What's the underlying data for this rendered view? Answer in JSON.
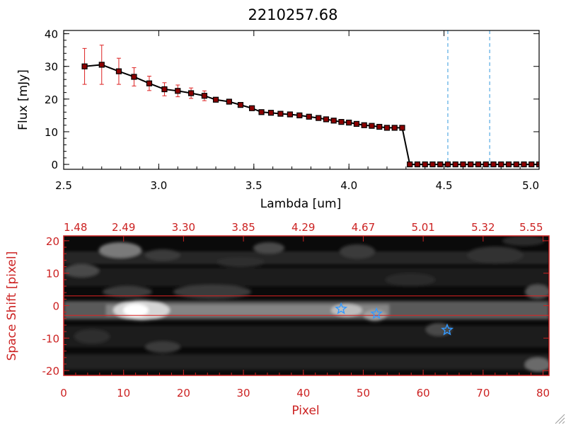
{
  "chart_data": [
    {
      "type": "line",
      "title": "2210257.68",
      "xlabel": "Lambda [um]",
      "ylabel": "Flux [mJy]",
      "xlim": [
        2.5,
        5.0
      ],
      "ylim": [
        -1.5,
        41
      ],
      "xticks": [
        "2.5",
        "3.0",
        "3.5",
        "4.0",
        "4.5",
        "5.0"
      ],
      "yticks": [
        "0",
        "10",
        "20",
        "30",
        "40"
      ],
      "vlines": [
        4.52,
        4.74
      ],
      "colors": {
        "line": "#000000",
        "marker": "#8b0000",
        "errorbar": "#dd2222",
        "vline": "#3399dd"
      },
      "series": [
        {
          "x": [
            2.61,
            2.7,
            2.79,
            2.87,
            2.95,
            3.03,
            3.1,
            3.17,
            3.24,
            3.3,
            3.37,
            3.43,
            3.49,
            3.54,
            3.59,
            3.64,
            3.69,
            3.74,
            3.79,
            3.84,
            3.88,
            3.92,
            3.96,
            4.0,
            4.04,
            4.08,
            4.12,
            4.16,
            4.2,
            4.24,
            4.28,
            4.32,
            4.36,
            4.4,
            4.44,
            4.48,
            4.52,
            4.56,
            4.6,
            4.64,
            4.68,
            4.72,
            4.76,
            4.8,
            4.84,
            4.88,
            4.92,
            4.96,
            5.0
          ],
          "y": [
            30.0,
            30.5,
            28.5,
            26.8,
            24.8,
            23.0,
            22.5,
            21.8,
            21.0,
            19.8,
            19.2,
            18.2,
            17.2,
            16.0,
            15.8,
            15.5,
            15.3,
            15.0,
            14.6,
            14.2,
            13.8,
            13.4,
            13.0,
            12.8,
            12.4,
            12.0,
            11.8,
            11.5,
            11.2,
            11.2,
            11.2,
            0,
            0,
            0,
            0,
            0,
            0,
            0,
            0,
            0,
            0,
            0,
            0,
            0,
            0,
            0,
            0,
            0,
            0
          ],
          "yerr": [
            5.5,
            6.0,
            4.0,
            2.8,
            2.2,
            2.0,
            1.8,
            1.6,
            1.5,
            0,
            0,
            0,
            0,
            0,
            0,
            0,
            0,
            0,
            0,
            0,
            0,
            0,
            0,
            0,
            0,
            0,
            0,
            0,
            0,
            0,
            0,
            0,
            0,
            0,
            0,
            0,
            0,
            0,
            0,
            0,
            0,
            0,
            0,
            0,
            0,
            0,
            0,
            0,
            0
          ]
        }
      ]
    },
    {
      "type": "heatmap",
      "xlabel": "Pixel",
      "ylabel": "Space Shift [pixel]",
      "xlim": [
        0,
        81
      ],
      "ylim": [
        -21.5,
        21.5
      ],
      "xticks": [
        "0",
        "10",
        "20",
        "30",
        "40",
        "50",
        "60",
        "70",
        "80"
      ],
      "yticks": [
        "-20",
        "-10",
        "0",
        "10",
        "20"
      ],
      "top_xticks": [
        "1.48",
        "2.49",
        "3.30",
        "3.85",
        "4.29",
        "4.67",
        "5.01",
        "5.32",
        "5.55"
      ],
      "hlines": [
        3,
        -3
      ],
      "stars": [
        {
          "x": 46.3,
          "y": -1.0
        },
        {
          "x": 52.2,
          "y": -2.5
        },
        {
          "x": 64.0,
          "y": -7.5
        }
      ],
      "colors": {
        "axis": "#cc2222",
        "hline": "#dd2222",
        "star": "#3399ff"
      }
    }
  ]
}
